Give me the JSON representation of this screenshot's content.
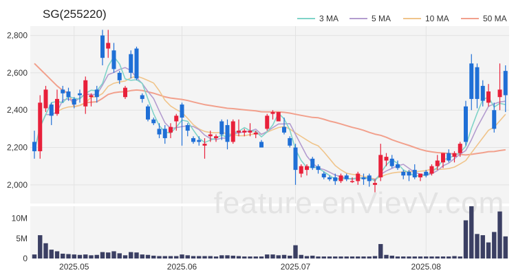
{
  "chart_data": {
    "type": "candlestick",
    "title": "SG(255220)",
    "watermark": "feature.enVievV.com",
    "legend": [
      {
        "name": "3 MA",
        "color": "#7fd3c8"
      },
      {
        "name": "5 MA",
        "color": "#b39ccf"
      },
      {
        "name": "10 MA",
        "color": "#f0c48a"
      },
      {
        "name": "50 MA",
        "color": "#f2a08c"
      }
    ],
    "legend_position": "top-right",
    "price_axis": {
      "ticks": [
        "2,800",
        "2,600",
        "2,400",
        "2,200",
        "2,000"
      ],
      "tick_values": [
        2800,
        2600,
        2400,
        2200,
        2000
      ],
      "ylim": [
        1900,
        2850
      ]
    },
    "volume_axis": {
      "ticks": [
        "10M",
        "5M",
        "0"
      ],
      "tick_values": [
        10,
        5,
        0
      ],
      "ylim": [
        0,
        13
      ]
    },
    "x_ticks": [
      {
        "label": "2025.05",
        "index": 7
      },
      {
        "label": "2025.06",
        "index": 26
      },
      {
        "label": "2025.07",
        "index": 46
      },
      {
        "label": "2025.08",
        "index": 69
      }
    ],
    "up_color": "#e8203a",
    "down_color": "#1f6fd6",
    "volume_color": "#3b3f63",
    "ohlc": [
      [
        2230,
        2290,
        2140,
        2180
      ],
      [
        2180,
        2480,
        2140,
        2440
      ],
      [
        2410,
        2530,
        2390,
        2510
      ],
      [
        2430,
        2440,
        2320,
        2370
      ],
      [
        2380,
        2510,
        2370,
        2460
      ],
      [
        2510,
        2530,
        2440,
        2490
      ],
      [
        2500,
        2520,
        2450,
        2470
      ],
      [
        2460,
        2470,
        2410,
        2430
      ],
      [
        2490,
        2510,
        2440,
        2480
      ],
      [
        2420,
        2580,
        2380,
        2560
      ],
      [
        2470,
        2490,
        2420,
        2480
      ],
      [
        2510,
        2530,
        2440,
        2470
      ],
      [
        2800,
        2830,
        2640,
        2680
      ],
      [
        2730,
        2830,
        2680,
        2760
      ],
      [
        2720,
        2760,
        2600,
        2620
      ],
      [
        2600,
        2610,
        2540,
        2560
      ],
      [
        2470,
        2530,
        2460,
        2520
      ],
      [
        2700,
        2720,
        2570,
        2600
      ],
      [
        2730,
        2740,
        2560,
        2570
      ],
      [
        2480,
        2490,
        2440,
        2460
      ],
      [
        2420,
        2430,
        2340,
        2350
      ],
      [
        2350,
        2360,
        2320,
        2330
      ],
      [
        2300,
        2330,
        2250,
        2270
      ],
      [
        2300,
        2320,
        2220,
        2250
      ],
      [
        2280,
        2330,
        2250,
        2310
      ],
      [
        2340,
        2380,
        2290,
        2370
      ],
      [
        2430,
        2440,
        2210,
        2360
      ],
      [
        2320,
        2330,
        2260,
        2290
      ],
      [
        2250,
        2260,
        2220,
        2230
      ],
      [
        2240,
        2260,
        2210,
        2230
      ],
      [
        2210,
        2250,
        2140,
        2220
      ],
      [
        2260,
        2290,
        2230,
        2270
      ],
      [
        2250,
        2270,
        2230,
        2260
      ],
      [
        2340,
        2350,
        2240,
        2270
      ],
      [
        2320,
        2350,
        2190,
        2230
      ],
      [
        2230,
        2350,
        2220,
        2340
      ],
      [
        2280,
        2350,
        2260,
        2290
      ],
      [
        2280,
        2300,
        2260,
        2290
      ],
      [
        2280,
        2330,
        2260,
        2290
      ],
      [
        2270,
        2290,
        2250,
        2280
      ],
      [
        2230,
        2240,
        2200,
        2200
      ],
      [
        2300,
        2380,
        2290,
        2370
      ],
      [
        2380,
        2400,
        2350,
        2390
      ],
      [
        2340,
        2390,
        2340,
        2390
      ],
      [
        2310,
        2360,
        2270,
        2280
      ],
      [
        2250,
        2260,
        2200,
        2210
      ],
      [
        2200,
        2220,
        2000,
        2080
      ],
      [
        2060,
        2110,
        2040,
        2100
      ],
      [
        2080,
        2110,
        2050,
        2100
      ],
      [
        2140,
        2150,
        2080,
        2090
      ],
      [
        2100,
        2110,
        2060,
        2080
      ],
      [
        2060,
        2070,
        2030,
        2040
      ],
      [
        2040,
        2050,
        2020,
        2030
      ],
      [
        2040,
        2060,
        2000,
        2020
      ],
      [
        2020,
        2060,
        2010,
        2050
      ],
      [
        2050,
        2060,
        2020,
        2030
      ],
      [
        2020,
        2040,
        2010,
        2020
      ],
      [
        2020,
        2070,
        2000,
        2060
      ],
      [
        2040,
        2060,
        2000,
        2030
      ],
      [
        2050,
        2060,
        1990,
        2020
      ],
      [
        2000,
        2030,
        1960,
        2010
      ],
      [
        2040,
        2220,
        2020,
        2160
      ],
      [
        2130,
        2170,
        2100,
        2150
      ],
      [
        2140,
        2160,
        2090,
        2100
      ],
      [
        2110,
        2130,
        2080,
        2090
      ],
      [
        2070,
        2080,
        2030,
        2050
      ],
      [
        2070,
        2080,
        2020,
        2050
      ],
      [
        2080,
        2110,
        2030,
        2040
      ],
      [
        2040,
        2060,
        2020,
        2060
      ],
      [
        2070,
        2080,
        2040,
        2050
      ],
      [
        2060,
        2110,
        2050,
        2100
      ],
      [
        2100,
        2160,
        2080,
        2130
      ],
      [
        2120,
        2170,
        2090,
        2170
      ],
      [
        2170,
        2190,
        2120,
        2130
      ],
      [
        2150,
        2180,
        2120,
        2170
      ],
      [
        2170,
        2230,
        2150,
        2220
      ],
      [
        2420,
        2450,
        2210,
        2230
      ],
      [
        2650,
        2700,
        2400,
        2460
      ],
      [
        2630,
        2650,
        2410,
        2460
      ],
      [
        2530,
        2560,
        2420,
        2450
      ],
      [
        2440,
        2540,
        2420,
        2500
      ],
      [
        2400,
        2440,
        2280,
        2300
      ],
      [
        2470,
        2650,
        2400,
        2510
      ],
      [
        2610,
        2640,
        2390,
        2480
      ]
    ],
    "volume_millions": [
      1.0,
      5.8,
      3.8,
      2.2,
      1.8,
      1.2,
      1.1,
      1.0,
      0.9,
      1.0,
      0.8,
      0.9,
      1.6,
      1.5,
      1.8,
      1.3,
      0.8,
      1.6,
      1.5,
      1.0,
      0.9,
      0.7,
      0.6,
      0.6,
      0.6,
      0.6,
      1.0,
      0.8,
      0.6,
      0.6,
      0.6,
      0.6,
      0.5,
      0.8,
      0.8,
      0.7,
      0.6,
      0.5,
      0.5,
      0.5,
      0.5,
      1.0,
      1.0,
      0.8,
      0.9,
      0.7,
      3.3,
      0.9,
      0.6,
      0.7,
      0.5,
      0.5,
      0.5,
      0.5,
      0.5,
      0.5,
      0.5,
      0.5,
      0.5,
      0.5,
      0.6,
      3.6,
      0.9,
      0.7,
      0.5,
      0.5,
      0.5,
      0.5,
      0.5,
      0.5,
      0.5,
      0.5,
      0.5,
      0.5,
      0.6,
      0.5,
      9.5,
      13.0,
      6.1,
      5.8,
      4.0,
      6.6,
      11.7,
      5.5
    ]
  }
}
